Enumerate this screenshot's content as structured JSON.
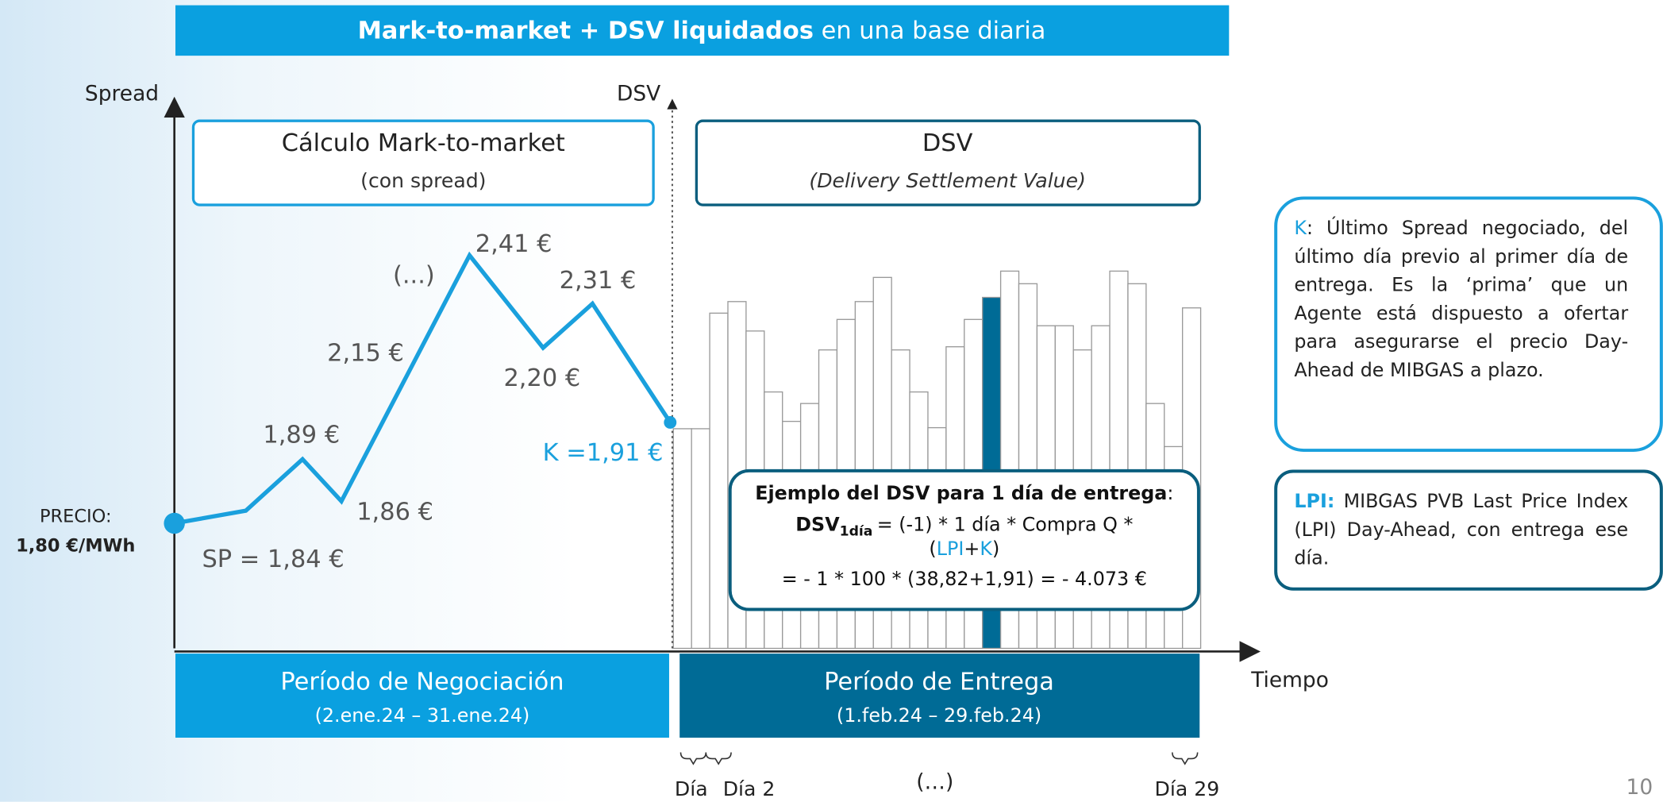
{
  "header": {
    "title_bold": "Mark-to-market + DSV liquidados",
    "title_rest": " en una base diaria"
  },
  "axes": {
    "y_left": "Spread",
    "y_right": "DSV",
    "x": "Tiempo"
  },
  "mtm_box": {
    "title": "Cálculo Mark-to-market",
    "subtitle": "(con spread)"
  },
  "dsv_box": {
    "title": "DSV",
    "subtitle": "(Delivery Settlement Value)"
  },
  "price": {
    "label": "PRECIO:",
    "value": "1,80 €/MWh"
  },
  "points": [
    "SP = 1,84 €",
    "1,89 €",
    "1,86 €",
    "2,15 €",
    "(...)",
    "2,41 €",
    "2,20 €",
    "2,31 €",
    "K =1,91 €"
  ],
  "example": {
    "title": "Ejemplo del DSV para 1 día de entrega",
    "colon": ":",
    "dsv": "DSV",
    "sub": "1día",
    "formula": "=  (-1) * 1 día * Compra Q *",
    "open": "(",
    "lpi": "LPI",
    "plus": "+",
    "k": "K",
    "close": ")",
    "result": "= - 1 * 100 * (38,82+1,91) = - 4.073 €"
  },
  "periods": [
    {
      "title": "Período de Negociación",
      "dates": "(2.ene.24 – 31.ene.24)"
    },
    {
      "title": "Período de Entrega",
      "dates": "(1.feb.24 – 29.feb.24)"
    }
  ],
  "days": [
    "Día",
    "Día 2",
    "(…)",
    "Día 29"
  ],
  "notes": {
    "k_key": "K",
    "k_text": ": Último Spread negociado, del último día previo al primer día de entrega. Es la ‘prima’ que un Agente está dispuesto a ofertar para asegurarse el precio Day-Ahead de MIBGAS a plazo.",
    "lpi_key": "LPI:",
    "lpi_text": " MIBGAS PVB Last Price Index (LPI) Day-Ahead, con entrega ese día."
  },
  "page_number": "10"
}
